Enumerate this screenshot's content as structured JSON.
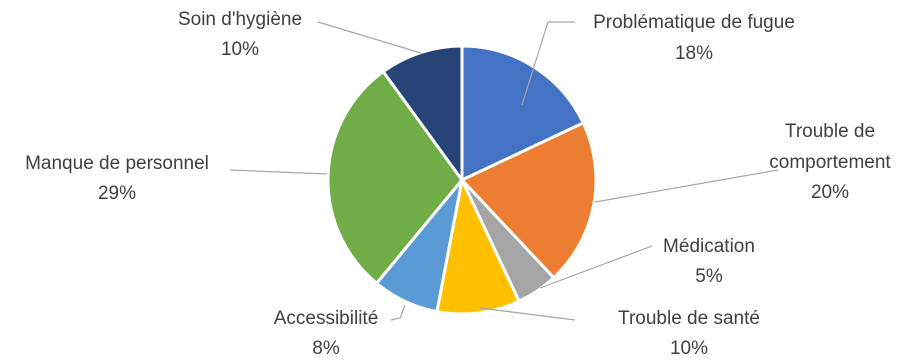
{
  "chart_data": {
    "type": "pie",
    "title": "",
    "legend": "none",
    "slices": [
      {
        "label": "Problématique de fugue",
        "value": 18,
        "value_label": "18%",
        "color": "#4472C4"
      },
      {
        "label": "Trouble de comportement",
        "label_lines": [
          "Trouble de",
          "comportement"
        ],
        "value": 20,
        "value_label": "20%",
        "color": "#ED7D31"
      },
      {
        "label": "Médication",
        "value": 5,
        "value_label": "5%",
        "color": "#A5A5A5"
      },
      {
        "label": "Trouble de santé",
        "value": 10,
        "value_label": "10%",
        "color": "#FFC000"
      },
      {
        "label": "Accessibilité",
        "value": 8,
        "value_label": "8%",
        "color": "#5B9BD5"
      },
      {
        "label": "Manque de personnel",
        "value": 29,
        "value_label": "29%",
        "color": "#70AD47"
      },
      {
        "label": "Soin d'hygiène",
        "value": 10,
        "value_label": "10%",
        "color": "#264478"
      }
    ]
  }
}
